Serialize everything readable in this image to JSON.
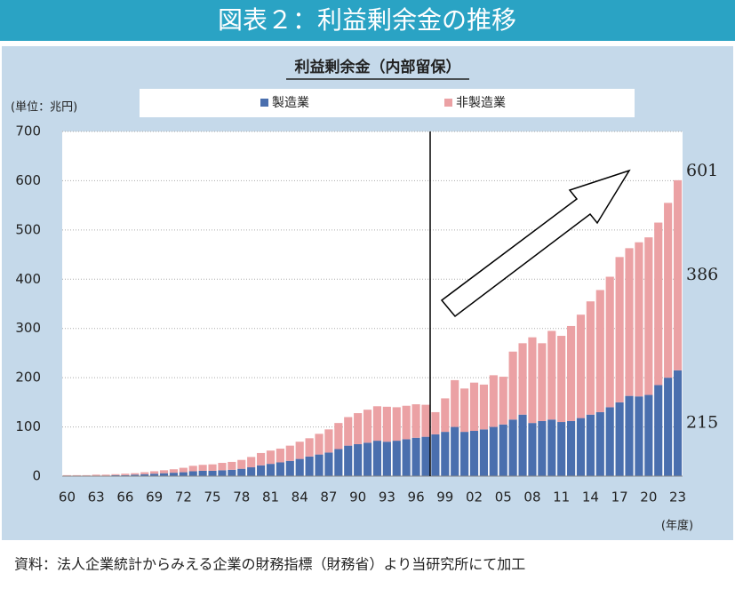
{
  "header": {
    "title": "図表２：利益剰余金の推移"
  },
  "chart_data": {
    "type": "stacked_bar",
    "title": "利益剰余金（内部留保）",
    "y_unit": "(単位：兆円)",
    "x_unit": "(年度)",
    "categories": [
      "60",
      null,
      null,
      "63",
      null,
      null,
      "66",
      null,
      null,
      "69",
      null,
      null,
      "72",
      null,
      null,
      "75",
      null,
      null,
      "78",
      null,
      null,
      "81",
      null,
      null,
      "84",
      null,
      null,
      "87",
      null,
      null,
      "90",
      null,
      null,
      "93",
      null,
      null,
      "96",
      null,
      null,
      "99",
      null,
      null,
      "02",
      null,
      null,
      "05",
      null,
      null,
      "08",
      null,
      null,
      "11",
      null,
      null,
      "14",
      null,
      null,
      "17",
      null,
      null,
      "20",
      null,
      null,
      "23"
    ],
    "series": [
      {
        "name": "製造業",
        "color": "#4a6fae",
        "values": [
          1,
          1,
          1,
          1,
          1,
          2,
          2,
          3,
          4,
          5,
          6,
          7,
          8,
          10,
          11,
          11,
          12,
          13,
          15,
          18,
          22,
          25,
          28,
          31,
          35,
          40,
          44,
          48,
          55,
          62,
          65,
          68,
          72,
          70,
          72,
          75,
          78,
          80,
          85,
          90,
          100,
          90,
          92,
          95,
          100,
          105,
          115,
          125,
          108,
          112,
          115,
          110,
          112,
          118,
          125,
          130,
          140,
          150,
          163,
          162,
          165,
          185,
          200,
          215
        ]
      },
      {
        "name": "非製造業",
        "color": "#eba1a4",
        "values": [
          1,
          1,
          1,
          2,
          2,
          2,
          3,
          3,
          4,
          5,
          6,
          7,
          9,
          11,
          12,
          13,
          15,
          16,
          18,
          21,
          25,
          27,
          28,
          31,
          35,
          37,
          42,
          47,
          53,
          58,
          63,
          67,
          70,
          71,
          68,
          68,
          68,
          65,
          45,
          68,
          95,
          88,
          98,
          91,
          105,
          97,
          138,
          145,
          174,
          158,
          180,
          175,
          193,
          210,
          230,
          248,
          265,
          295,
          300,
          313,
          320,
          330,
          355,
          386
        ]
      }
    ],
    "total_label": 601,
    "ylim": [
      0,
      700
    ],
    "yticks": [
      0,
      100,
      200,
      300,
      400,
      500,
      600,
      700
    ],
    "grid": true
  }
}
